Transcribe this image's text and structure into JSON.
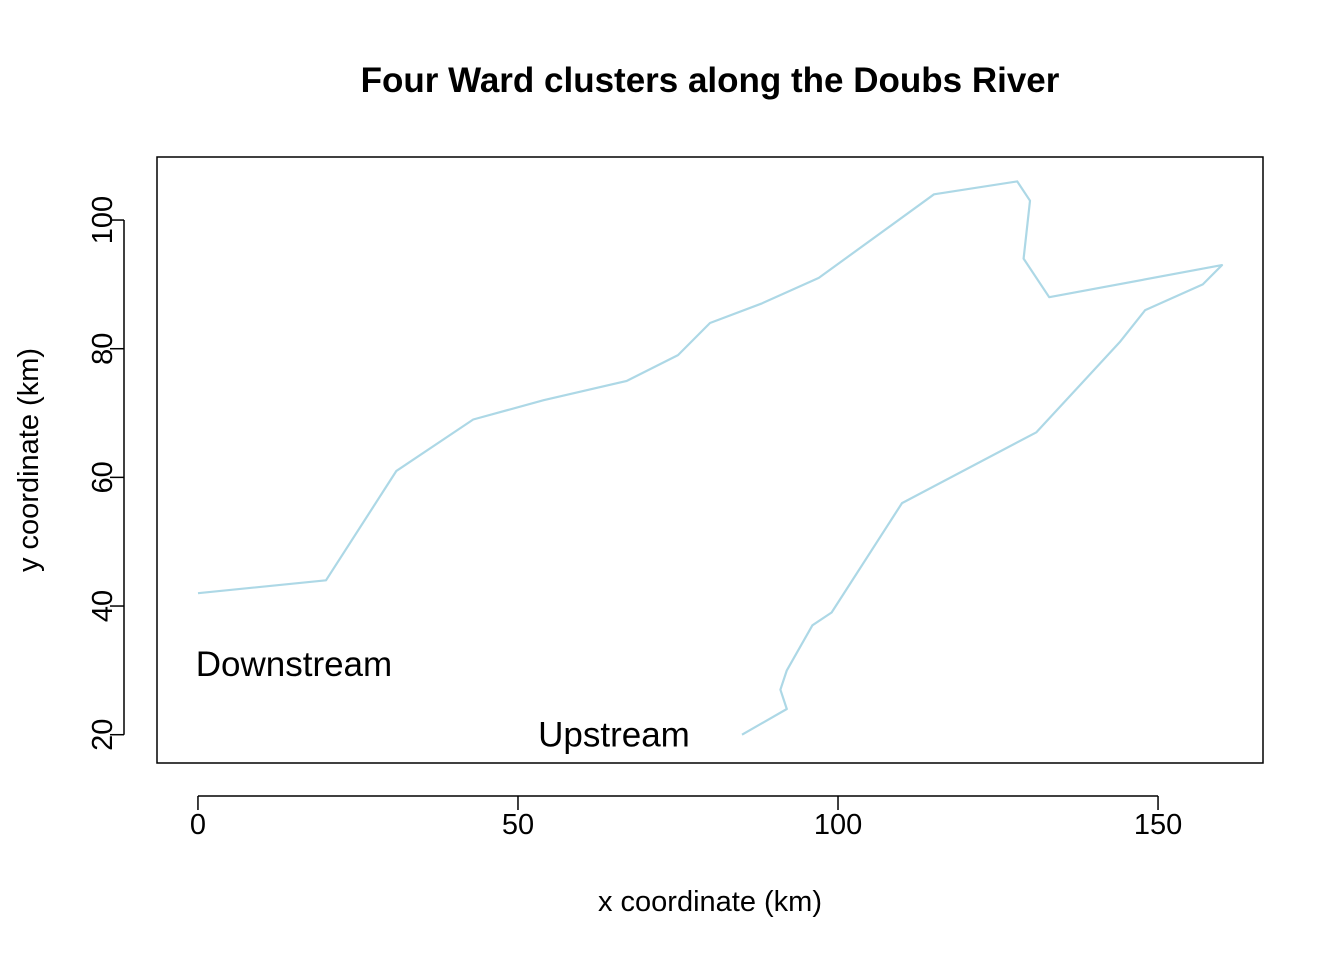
{
  "chart_data": {
    "type": "line",
    "title": "Four Ward clusters along the Doubs River",
    "xlabel": "x coordinate (km)",
    "ylabel": "y coordinate (km)",
    "xlim": [
      -6.4,
      166.4
    ],
    "ylim": [
      15.6,
      109.8
    ],
    "xticks": [
      0,
      50,
      100,
      150
    ],
    "yticks": [
      20,
      40,
      60,
      80,
      100
    ],
    "grid": false,
    "line_color": "#add8e6",
    "series": [
      {
        "values_xy": [
          [
            85,
            20
          ],
          [
            92,
            24
          ],
          [
            91,
            27
          ],
          [
            92,
            30
          ],
          [
            96,
            37
          ],
          [
            99,
            39
          ],
          [
            110,
            56
          ],
          [
            131,
            67
          ],
          [
            144,
            81
          ],
          [
            148,
            86
          ],
          [
            157,
            90
          ],
          [
            160,
            93
          ],
          [
            133,
            88
          ],
          [
            129,
            94
          ],
          [
            130,
            103
          ],
          [
            128,
            106
          ],
          [
            115,
            104
          ],
          [
            97,
            91
          ],
          [
            88,
            87
          ],
          [
            80,
            84
          ],
          [
            75,
            79
          ],
          [
            67,
            75
          ],
          [
            54,
            72
          ],
          [
            43,
            69
          ],
          [
            31,
            61
          ],
          [
            20,
            44
          ],
          [
            0,
            42
          ]
        ]
      }
    ],
    "annotations": [
      {
        "text": "Upstream",
        "x": 65,
        "y": 20
      },
      {
        "text": "Downstream",
        "x": 15,
        "y": 31
      }
    ]
  }
}
